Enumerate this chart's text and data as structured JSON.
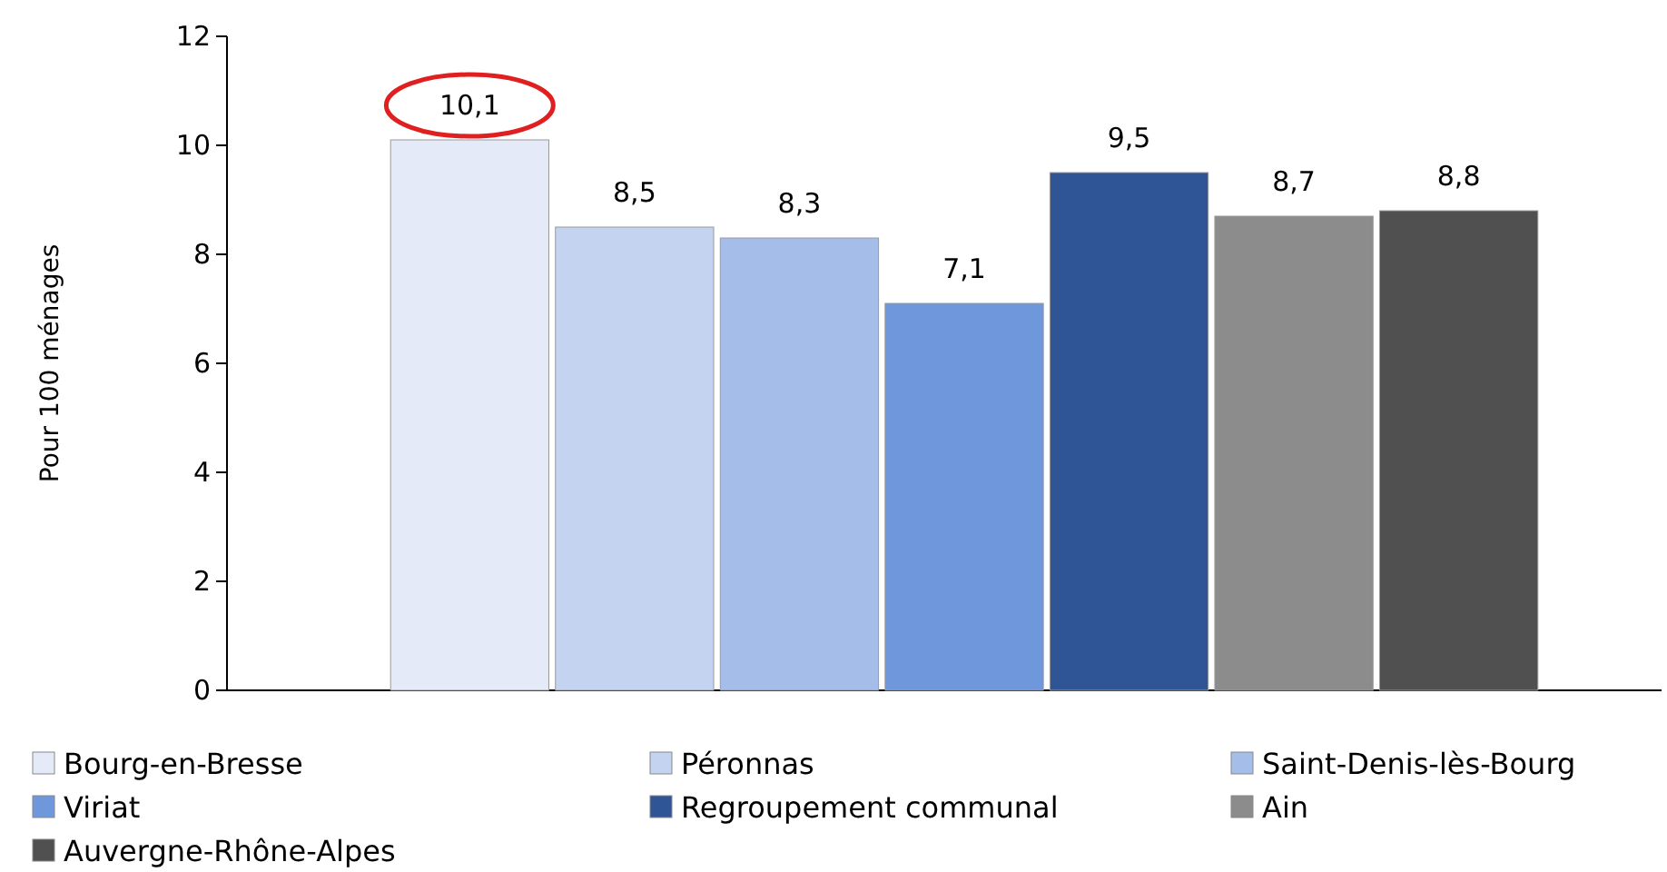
{
  "chart_data": {
    "type": "bar",
    "ylabel": "Pour 100 ménages",
    "categories": [
      null
    ],
    "series": [
      {
        "name": "Bourg-en-Bresse",
        "color": "#e4eaf8",
        "values": [
          10.1
        ],
        "value_labels": [
          "10,1"
        ]
      },
      {
        "name": "Péronnas",
        "color": "#c3d3f0",
        "values": [
          8.5
        ],
        "value_labels": [
          "8,5"
        ]
      },
      {
        "name": "Saint-Denis-lès-Bourg",
        "color": "#a5bde9",
        "values": [
          8.3
        ],
        "value_labels": [
          "8,3"
        ]
      },
      {
        "name": "Viriat",
        "color": "#6f97dc",
        "values": [
          7.1
        ],
        "value_labels": [
          "7,1"
        ]
      },
      {
        "name": "Regroupement communal",
        "color": "#2f5597",
        "values": [
          9.5
        ],
        "value_labels": [
          "9,5"
        ]
      },
      {
        "name": "Ain",
        "color": "#8c8c8c",
        "values": [
          8.7
        ],
        "value_labels": [
          "8,7"
        ]
      },
      {
        "name": "Auvergne-Rhône-Alpes",
        "color": "#505050",
        "values": [
          8.8
        ],
        "value_labels": [
          "8,8"
        ]
      }
    ],
    "ylim": [
      0,
      12
    ],
    "yticks": [
      0,
      2,
      4,
      6,
      8,
      10,
      12
    ],
    "legend": "bottom"
  }
}
